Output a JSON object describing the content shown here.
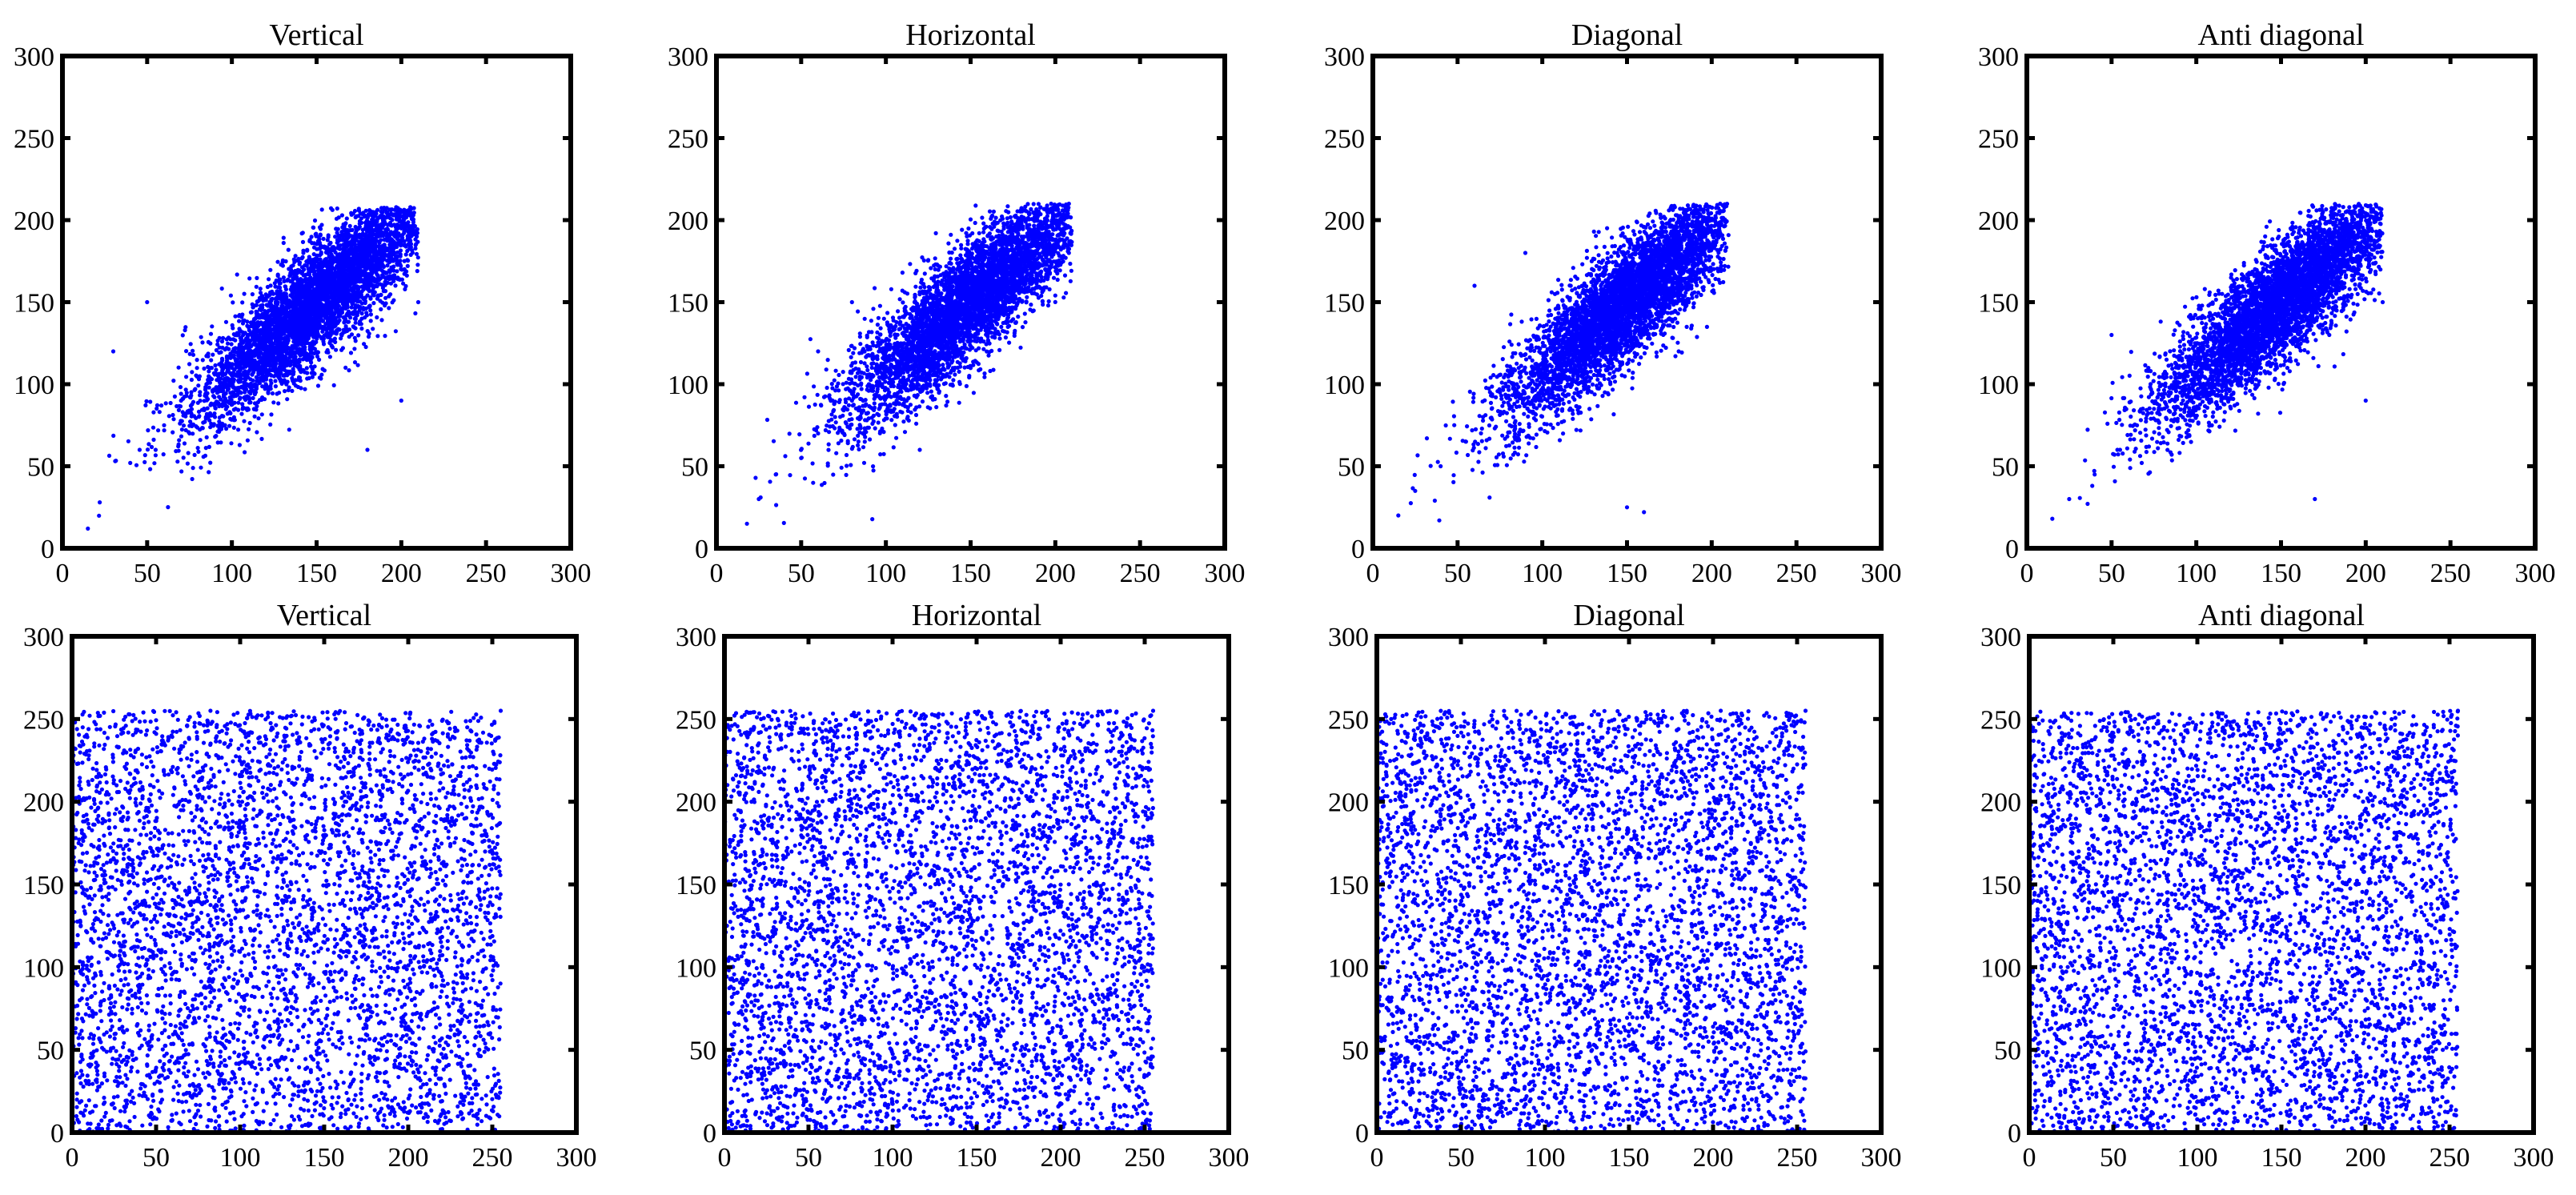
{
  "figure": {
    "marker_color": "#0000ff",
    "axis_color": "#000000"
  },
  "chart_data": [
    {
      "type": "scatter",
      "title": "Vertical",
      "row": "top",
      "xlim": [
        0,
        300
      ],
      "ylim": [
        0,
        300
      ],
      "xticks": [
        0,
        50,
        100,
        150,
        200,
        250,
        300
      ],
      "yticks": [
        0,
        50,
        100,
        150,
        200,
        250,
        300
      ],
      "grid": false,
      "distribution": "correlated",
      "x_range": [
        15,
        210
      ],
      "y_range": [
        12,
        208
      ],
      "approx_points": 4500,
      "points": [
        [
          15,
          12
        ],
        [
          22,
          28
        ],
        [
          40,
          52
        ],
        [
          55,
          60
        ],
        [
          60,
          75
        ],
        [
          70,
          90
        ],
        [
          75,
          70
        ],
        [
          85,
          100
        ],
        [
          90,
          80
        ],
        [
          100,
          110
        ],
        [
          105,
          95
        ],
        [
          110,
          120
        ],
        [
          120,
          105
        ],
        [
          125,
          130
        ],
        [
          130,
          140
        ],
        [
          140,
          125
        ],
        [
          145,
          150
        ],
        [
          150,
          135
        ],
        [
          160,
          160
        ],
        [
          165,
          145
        ],
        [
          170,
          175
        ],
        [
          180,
          165
        ],
        [
          190,
          185
        ],
        [
          200,
          195
        ],
        [
          205,
          205
        ],
        [
          210,
          150
        ],
        [
          50,
          150
        ],
        [
          30,
          120
        ],
        [
          180,
          60
        ],
        [
          200,
          90
        ]
      ]
    },
    {
      "type": "scatter",
      "title": "Horizontal",
      "row": "top",
      "xlim": [
        0,
        300
      ],
      "ylim": [
        0,
        300
      ],
      "xticks": [
        0,
        50,
        100,
        150,
        200,
        250,
        300
      ],
      "yticks": [
        0,
        50,
        100,
        150,
        200,
        250,
        300
      ],
      "grid": false,
      "distribution": "correlated",
      "x_range": [
        18,
        210
      ],
      "y_range": [
        15,
        210
      ],
      "approx_points": 4500,
      "points": [
        [
          18,
          15
        ],
        [
          25,
          30
        ],
        [
          35,
          45
        ],
        [
          50,
          55
        ],
        [
          60,
          70
        ],
        [
          70,
          80
        ],
        [
          80,
          90
        ],
        [
          90,
          100
        ],
        [
          100,
          105
        ],
        [
          110,
          120
        ],
        [
          120,
          115
        ],
        [
          130,
          135
        ],
        [
          140,
          140
        ],
        [
          150,
          150
        ],
        [
          160,
          165
        ],
        [
          170,
          170
        ],
        [
          180,
          180
        ],
        [
          190,
          195
        ],
        [
          200,
          200
        ],
        [
          208,
          210
        ],
        [
          60,
          120
        ],
        [
          80,
          150
        ],
        [
          120,
          60
        ]
      ]
    },
    {
      "type": "scatter",
      "title": "Diagonal",
      "row": "top",
      "xlim": [
        0,
        300
      ],
      "ylim": [
        0,
        300
      ],
      "xticks": [
        0,
        50,
        100,
        150,
        200,
        250,
        300
      ],
      "yticks": [
        0,
        50,
        100,
        150,
        200,
        250,
        300
      ],
      "grid": false,
      "distribution": "correlated",
      "x_range": [
        15,
        210
      ],
      "y_range": [
        15,
        210
      ],
      "approx_points": 4500,
      "points": [
        [
          15,
          20
        ],
        [
          25,
          35
        ],
        [
          40,
          50
        ],
        [
          55,
          65
        ],
        [
          65,
          80
        ],
        [
          75,
          95
        ],
        [
          85,
          100
        ],
        [
          95,
          110
        ],
        [
          105,
          120
        ],
        [
          115,
          125
        ],
        [
          125,
          135
        ],
        [
          135,
          145
        ],
        [
          145,
          150
        ],
        [
          155,
          160
        ],
        [
          165,
          170
        ],
        [
          175,
          180
        ],
        [
          185,
          190
        ],
        [
          195,
          200
        ],
        [
          205,
          210
        ],
        [
          160,
          22
        ],
        [
          150,
          25
        ],
        [
          60,
          160
        ],
        [
          90,
          180
        ]
      ]
    },
    {
      "type": "scatter",
      "title": "Anti diagonal",
      "row": "top",
      "xlim": [
        0,
        300
      ],
      "ylim": [
        0,
        300
      ],
      "xticks": [
        0,
        50,
        100,
        150,
        200,
        250,
        300
      ],
      "yticks": [
        0,
        50,
        100,
        150,
        200,
        250,
        300
      ],
      "grid": false,
      "distribution": "correlated",
      "x_range": [
        15,
        210
      ],
      "y_range": [
        15,
        210
      ],
      "approx_points": 4500,
      "points": [
        [
          15,
          18
        ],
        [
          25,
          30
        ],
        [
          40,
          45
        ],
        [
          55,
          60
        ],
        [
          65,
          75
        ],
        [
          75,
          85
        ],
        [
          85,
          95
        ],
        [
          95,
          105
        ],
        [
          105,
          115
        ],
        [
          115,
          120
        ],
        [
          125,
          130
        ],
        [
          135,
          140
        ],
        [
          145,
          150
        ],
        [
          155,
          160
        ],
        [
          165,
          170
        ],
        [
          175,
          180
        ],
        [
          185,
          190
        ],
        [
          195,
          195
        ],
        [
          205,
          205
        ],
        [
          210,
          150
        ],
        [
          170,
          30
        ],
        [
          200,
          90
        ],
        [
          50,
          130
        ]
      ]
    },
    {
      "type": "scatter",
      "title": "Vertical",
      "row": "bottom",
      "xlim": [
        0,
        300
      ],
      "ylim": [
        0,
        300
      ],
      "xticks": [
        0,
        50,
        100,
        150,
        200,
        250,
        300
      ],
      "yticks": [
        0,
        50,
        100,
        150,
        200,
        250,
        300
      ],
      "grid": false,
      "distribution": "uniform",
      "x_range": [
        0,
        255
      ],
      "y_range": [
        0,
        255
      ],
      "approx_points": 4500,
      "points": [
        [
          0,
          0
        ],
        [
          255,
          255
        ],
        [
          0,
          255
        ],
        [
          255,
          0
        ],
        [
          128,
          128
        ],
        [
          64,
          200
        ],
        [
          200,
          64
        ]
      ]
    },
    {
      "type": "scatter",
      "title": "Horizontal",
      "row": "bottom",
      "xlim": [
        0,
        300
      ],
      "ylim": [
        0,
        300
      ],
      "xticks": [
        0,
        50,
        100,
        150,
        200,
        250,
        300
      ],
      "yticks": [
        0,
        50,
        100,
        150,
        200,
        250,
        300
      ],
      "grid": false,
      "distribution": "uniform",
      "x_range": [
        0,
        255
      ],
      "y_range": [
        0,
        255
      ],
      "approx_points": 4500,
      "points": [
        [
          0,
          0
        ],
        [
          255,
          255
        ],
        [
          0,
          255
        ],
        [
          255,
          0
        ],
        [
          128,
          128
        ],
        [
          64,
          200
        ],
        [
          200,
          64
        ]
      ]
    },
    {
      "type": "scatter",
      "title": "Diagonal",
      "row": "bottom",
      "xlim": [
        0,
        300
      ],
      "ylim": [
        0,
        300
      ],
      "xticks": [
        0,
        50,
        100,
        150,
        200,
        250,
        300
      ],
      "yticks": [
        0,
        50,
        100,
        150,
        200,
        250,
        300
      ],
      "grid": false,
      "distribution": "uniform",
      "x_range": [
        0,
        255
      ],
      "y_range": [
        0,
        255
      ],
      "approx_points": 4500,
      "points": [
        [
          0,
          0
        ],
        [
          255,
          255
        ],
        [
          0,
          255
        ],
        [
          255,
          0
        ],
        [
          128,
          128
        ],
        [
          64,
          200
        ],
        [
          200,
          64
        ]
      ]
    },
    {
      "type": "scatter",
      "title": "Anti diagonal",
      "row": "bottom",
      "xlim": [
        0,
        300
      ],
      "ylim": [
        0,
        300
      ],
      "xticks": [
        0,
        50,
        100,
        150,
        200,
        250,
        300
      ],
      "yticks": [
        0,
        50,
        100,
        150,
        200,
        250,
        300
      ],
      "grid": false,
      "distribution": "uniform",
      "x_range": [
        0,
        255
      ],
      "y_range": [
        0,
        255
      ],
      "approx_points": 4500,
      "points": [
        [
          0,
          0
        ],
        [
          255,
          255
        ],
        [
          0,
          255
        ],
        [
          255,
          0
        ],
        [
          128,
          128
        ],
        [
          64,
          200
        ],
        [
          200,
          64
        ]
      ]
    }
  ]
}
